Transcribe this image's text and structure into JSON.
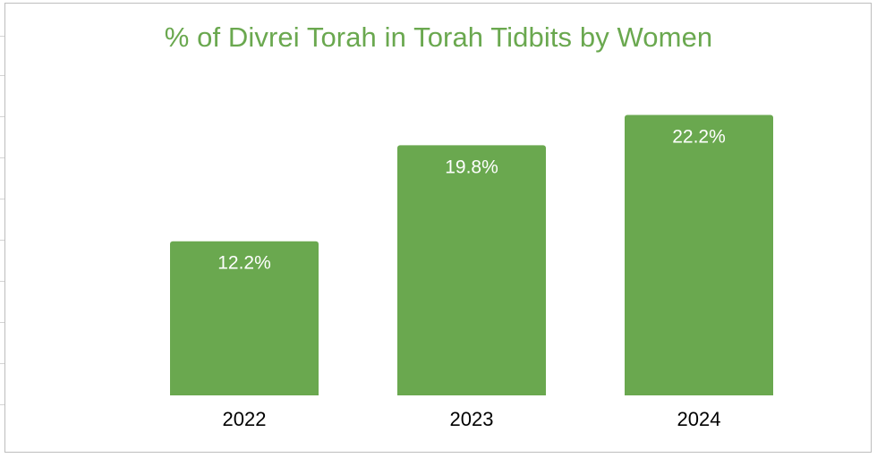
{
  "chart_data": {
    "type": "bar",
    "title": "% of Divrei Torah in Torah Tidbits by Women",
    "xlabel": "",
    "ylabel": "",
    "categories": [
      "2022",
      "2023",
      "2024"
    ],
    "values": [
      12.2,
      19.8,
      22.2
    ],
    "data_labels": [
      "12.2%",
      "19.8%",
      "22.2%"
    ],
    "ylim": [
      0,
      24.5
    ],
    "grid": false,
    "legend": "none",
    "colors": {
      "bar": "#6aa84f",
      "title": "#6aa84f",
      "data_label": "#ffffff",
      "tick_label": "#000000"
    }
  }
}
